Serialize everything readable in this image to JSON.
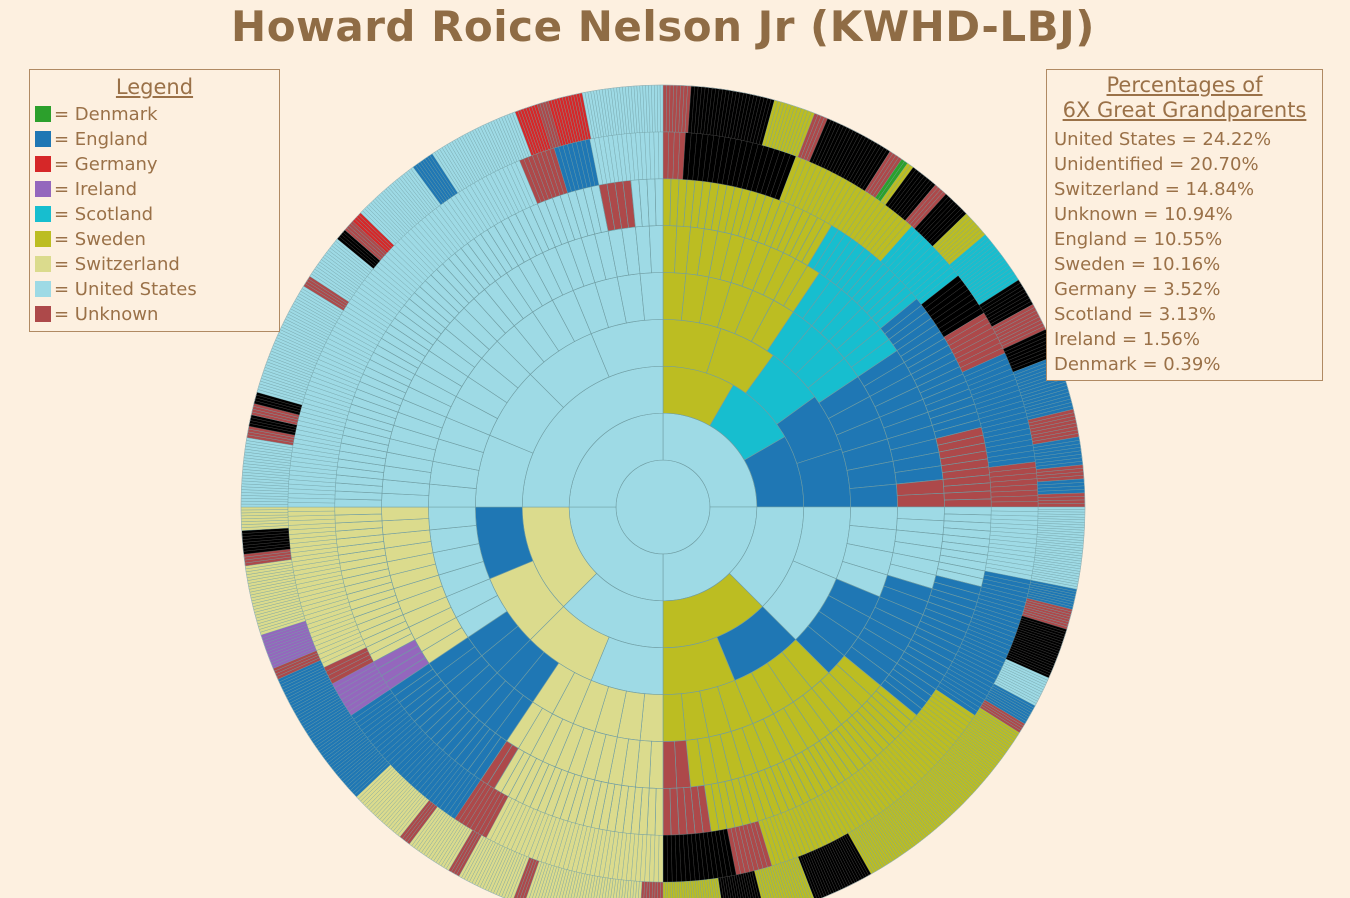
{
  "title": "Howard Roice Nelson Jr (KWHD-LBJ)",
  "legend": {
    "title": "Legend",
    "items": [
      {
        "label": "= Denmark",
        "color": "#2ca02c"
      },
      {
        "label": "= England",
        "color": "#1f77b4"
      },
      {
        "label": "= Germany",
        "color": "#d62728"
      },
      {
        "label": "= Ireland",
        "color": "#9467bd"
      },
      {
        "label": "= Scotland",
        "color": "#17becf"
      },
      {
        "label": "= Sweden",
        "color": "#bcbd22"
      },
      {
        "label": "= Switzerland",
        "color": "#dbdb8d"
      },
      {
        "label": "= United States",
        "color": "#9edae5"
      },
      {
        "label": "= Unknown",
        "color": "#ad494a"
      }
    ]
  },
  "percentages": {
    "title_line1": "Percentages of",
    "title_line2": "6X Great Grandparents",
    "items": [
      {
        "label": "United States = 24.22%"
      },
      {
        "label": "Unidentified = 20.70%"
      },
      {
        "label": "Switzerland = 14.84%"
      },
      {
        "label": "Unknown = 10.94%"
      },
      {
        "label": "England = 10.55%"
      },
      {
        "label": "Sweden = 10.16%"
      },
      {
        "label": "Germany = 3.52%"
      },
      {
        "label": "Scotland = 3.13%"
      },
      {
        "label": "Ireland = 1.56%"
      },
      {
        "label": "Denmark = 0.39%"
      }
    ]
  },
  "chart_data": {
    "type": "sunburst",
    "generations": 8,
    "colors": {
      "Denmark": "#2ca02c",
      "England": "#1f77b4",
      "Germany": "#d62728",
      "Ireland": "#9467bd",
      "Scotland": "#17becf",
      "Sweden": "#bcbd22",
      "Switzerland": "#dbdb8d",
      "United States": "#9edae5",
      "Unknown": "#ad494a",
      "Unidentified": "#000000",
      "None": "none"
    },
    "quadrants": [
      {
        "name": "Q0 (top-right)",
        "rings": [
          "United States",
          "Sweden|Scotland|England",
          "Sweden*2|Scotland|England*2",
          "Sweden*6|Scotland*4|England*6",
          "Sweden*12|Scotland*8|England*10|Unknown*2",
          "Sweden*22|Scotland*14|England*18|Unknown*10",
          "Unknown*4|Unidentified*20|Sweden*24|Scotland*12|Unidentified*8|Unknown*8|England*20|Unknown*8",
          "Unknown*8|Unidentified*24|Sweden*12|Unknown*4|Unidentified*20|Unknown*4|Denmark*2|Sweden*2|Unidentified*8|Unknown*4|Unidentified*8|Sweden*8|Scotland*16|Unidentified*8|Unknown*8|Unidentified*8|England*16|Unknown*8|England*8|Unknown*4|England*4|Unknown*4"
        ]
      },
      {
        "name": "Q1 (bottom-right)",
        "rings": [
          "United States",
          "United States|Sweden",
          "United States*2|England|Sweden",
          "United States*4|England*4|Sweden*8",
          "United States*6|England*8|Sweden*16|Unknown*2",
          "United States*10|England*18|Sweden*30|Unknown*6",
          "United States*16|England*32|Sweden*56|Unknown*8|Unidentified*16",
          "United States*32|England*8|Unknown*8|Unidentified*20|United States*12|England*8|Unknown*4|Sweden*80|Unidentified*24|Sweden*20|Unidentified*16|Sweden*24"
        ]
      },
      {
        "name": "Q2 (bottom-left)",
        "rings": [
          "United States",
          "United States|Switzerland",
          "United States|Switzerland*2|England",
          "Switzerland*6|England*4|United States*6",
          "Switzerland*12|England*8|Switzerland*12",
          "Switzerland*22|Unknown*2|England*16|Ireland*4|Switzerland*20",
          "Switzerland*40|Unknown*8|England*32|Ireland*8|Unknown*4|Switzerland*36",
          "Unknown*8|Switzerland*40|Unknown*4|Switzerland*20|Unknown*4|Switzerland*16|Unknown*4|Switzerland*20|England*48|Unknown*4|Ireland*12|Switzerland*24|Unknown*4|Unidentified*8|Switzerland*8"
        ]
      },
      {
        "name": "Q3 (top-left)",
        "rings": [
          "United States",
          "United States",
          "United States*4",
          "United States*16",
          "United States*32",
          "United States*56|Unknown*4|United States*4",
          "United States*96|Unknown*8|England*8|United States*16",
          "United States*24|Unknown*4|Unidentified*4|Unknown*4|Unidentified*4|United States*40|Unknown*4|United States*16|Unidentified*4|Unknown*4|Germany*4|United States*24|England*8|United States*32|Germany*8|Unknown*4|Germany*12|United States*28"
        ]
      }
    ]
  }
}
